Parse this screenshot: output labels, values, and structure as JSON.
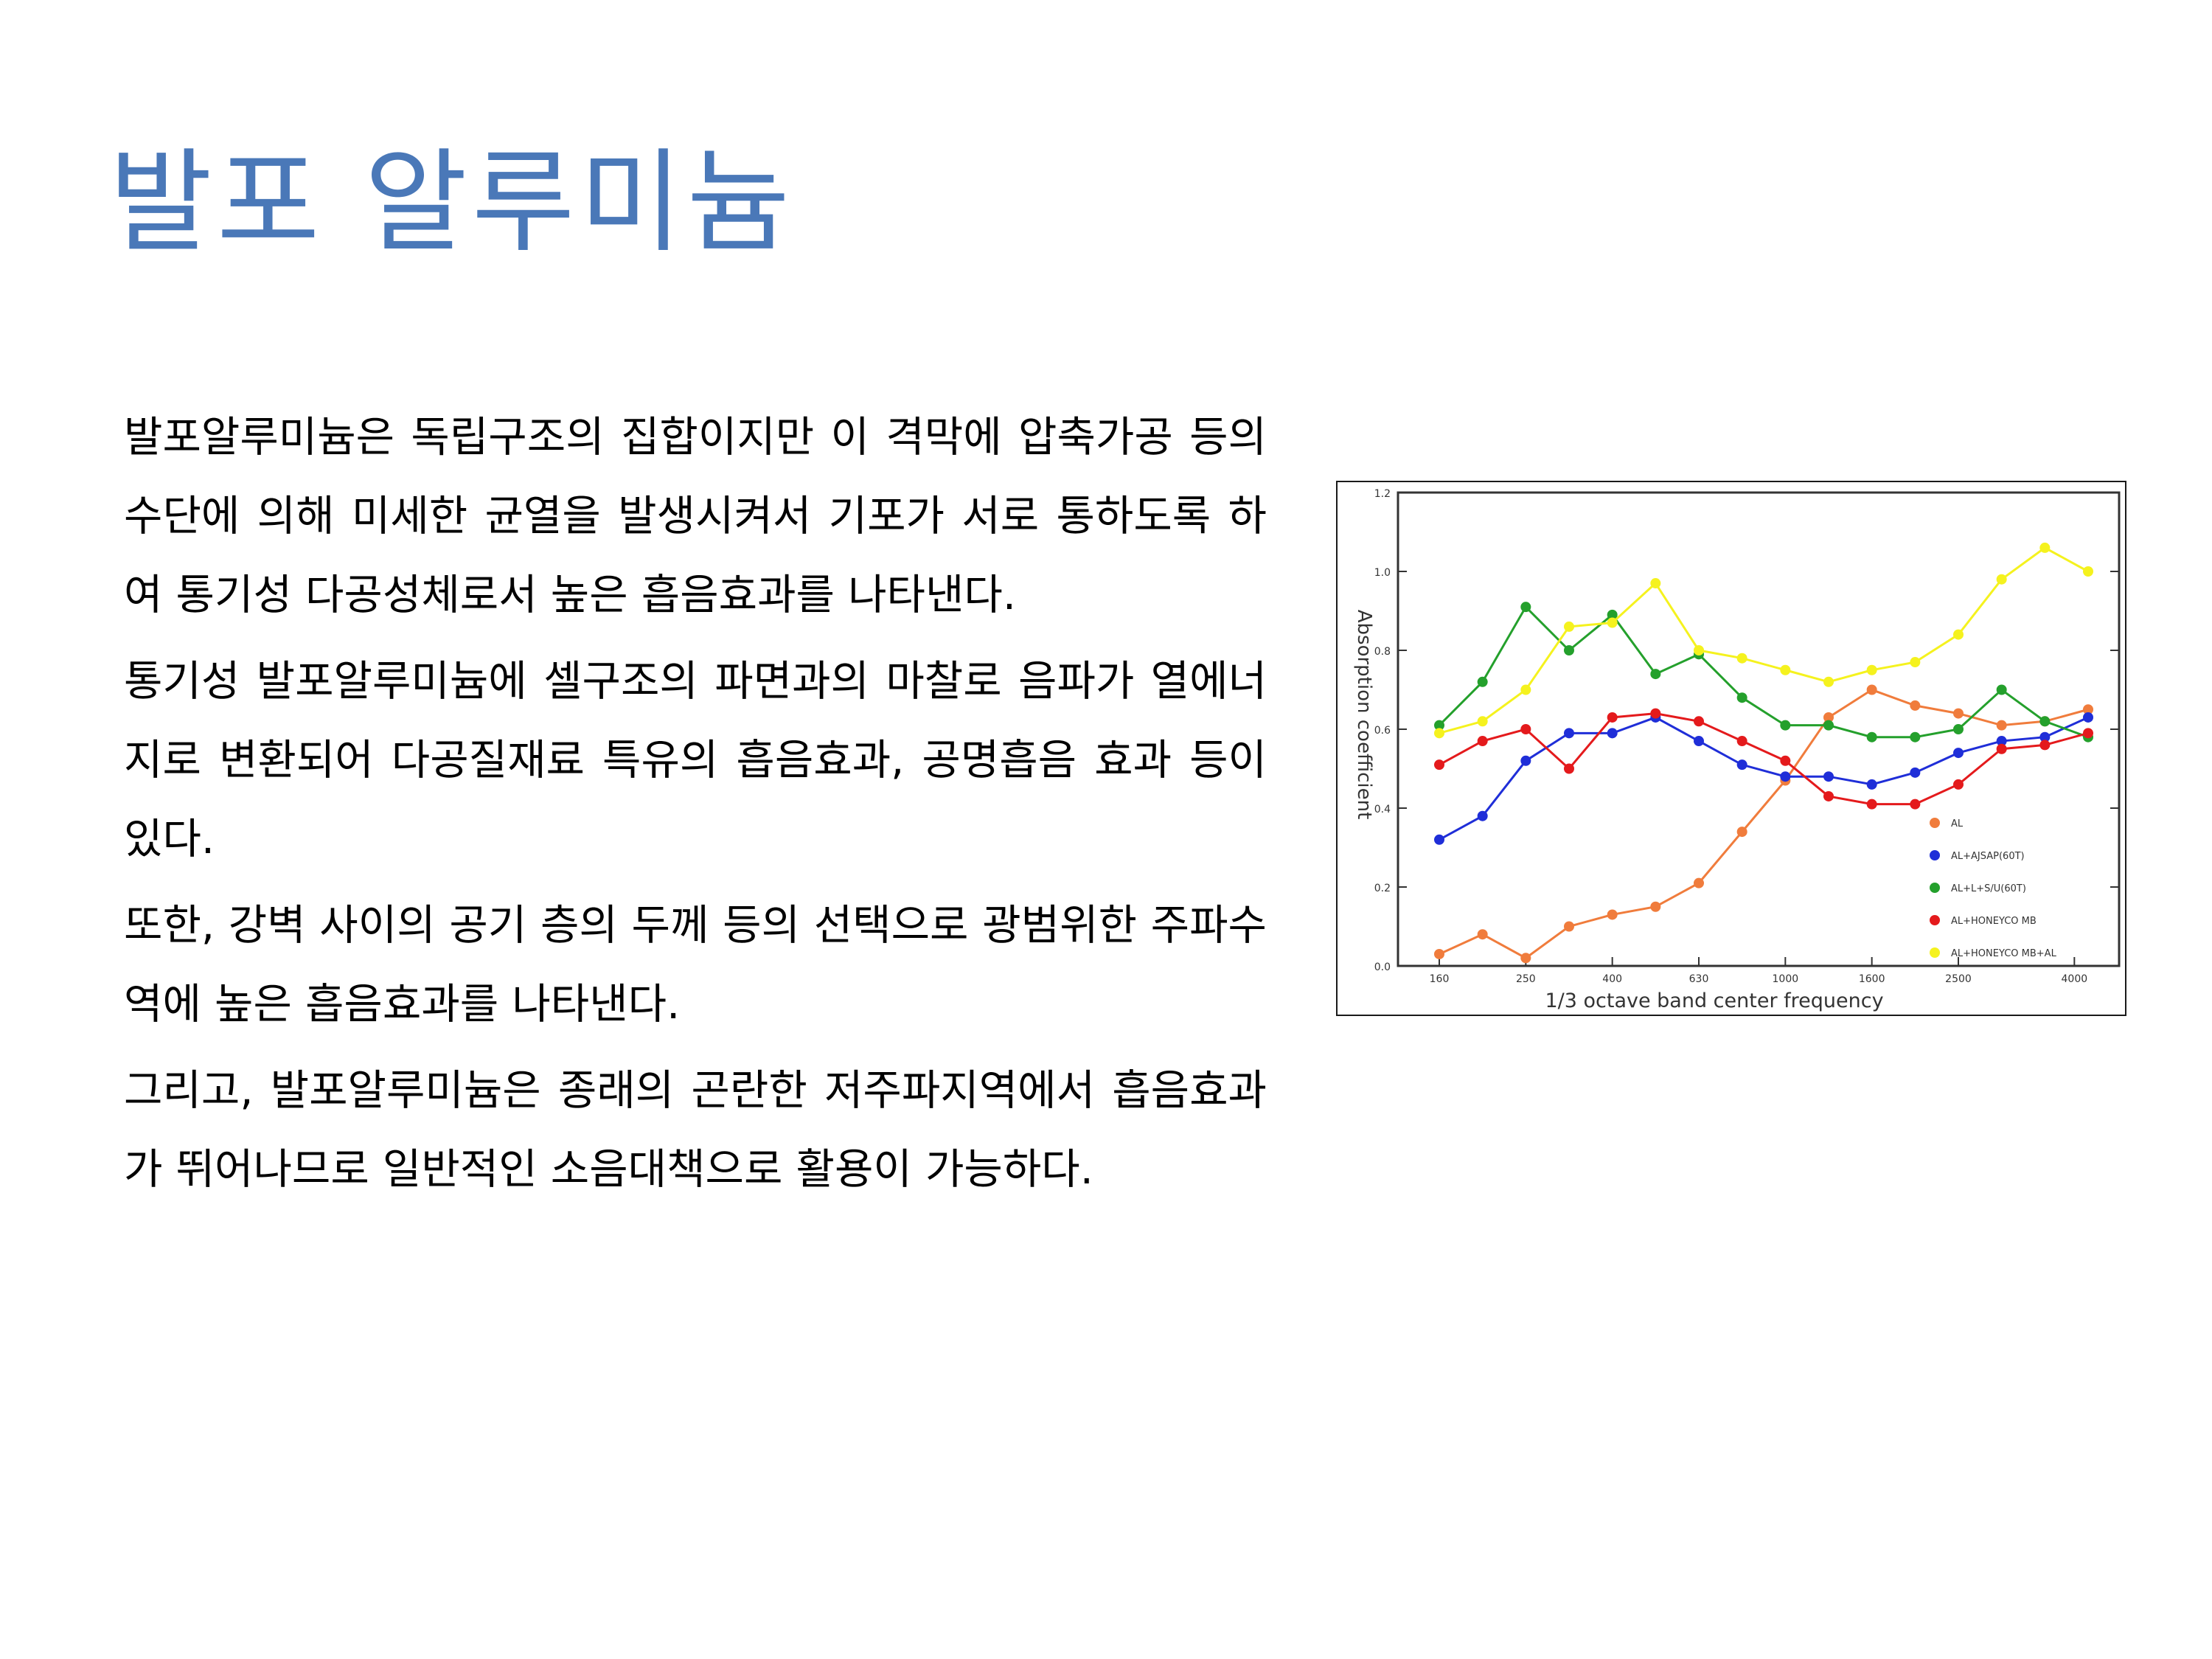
{
  "title": "발포 알루미늄",
  "paragraphs": [
    "발포알루미늄은 독립구조의 집합이지만 이 격막에 압축가공 등의 수단에 의해 미세한 균열을 발생시켜서 기포가 서로 통하도록 하여 통기성 다공성체로서 높은 흡음효과를 나타낸다.",
    "통기성 발포알루미늄에 셀구조의 파면과의 마찰로 음파가 열에너지로 변환되어 다공질재료 특유의 흡음효과, 공명흡음 효과 등이 있다.",
    "또한, 강벽 사이의 공기 층의 두께 등의 선택으로 광범위한 주파수역에 높은 흡음효과를 나타낸다.",
    "그리고, 발포알루미늄은 종래의 곤란한 저주파지역에서 흡음효과가 뛰어나므로 일반적인 소음대책으로 활용이 가능하다."
  ],
  "chart_data": {
    "type": "line",
    "xlabel": "1/3 octave band center frequency",
    "ylabel": "Absorption coefficient",
    "x_tick_labels": [
      "160",
      "250",
      "400",
      "630",
      "1000",
      "1600",
      "2500",
      "4000"
    ],
    "y_tick_labels": [
      "0.0",
      "0.2",
      "0.4",
      "0.6",
      "0.8",
      "1.0",
      "1.2"
    ],
    "ylim": [
      0,
      1.2
    ],
    "legend_position": "bottom-right",
    "series": [
      {
        "name": "AL",
        "color": "#f07c3c",
        "values": [
          0.03,
          0.08,
          0.02,
          0.1,
          0.13,
          0.15,
          0.21,
          0.34,
          0.47,
          0.63,
          0.7,
          0.66,
          0.64,
          0.61,
          0.62,
          0.65
        ]
      },
      {
        "name": "AL+AJSAP(60T)",
        "color": "#1f2ed8",
        "values": [
          0.32,
          0.38,
          0.52,
          0.59,
          0.59,
          0.63,
          0.57,
          0.51,
          0.48,
          0.48,
          0.46,
          0.49,
          0.54,
          0.57,
          0.58,
          0.63
        ]
      },
      {
        "name": "AL+L+S/U(60T)",
        "color": "#24a02c",
        "values": [
          0.61,
          0.72,
          0.91,
          0.8,
          0.89,
          0.74,
          0.79,
          0.68,
          0.61,
          0.61,
          0.58,
          0.58,
          0.6,
          0.7,
          0.62,
          0.58
        ]
      },
      {
        "name": "AL+HONEYCO MB",
        "color": "#e41a1c",
        "values": [
          0.51,
          0.57,
          0.6,
          0.5,
          0.63,
          0.64,
          0.62,
          0.57,
          0.52,
          0.43,
          0.41,
          0.41,
          0.46,
          0.55,
          0.56,
          0.59
        ]
      },
      {
        "name": "AL+HONEYCO MB+AL",
        "color": "#f5f21e",
        "values": [
          0.59,
          0.62,
          0.7,
          0.86,
          0.87,
          0.97,
          0.8,
          0.78,
          0.75,
          0.72,
          0.75,
          0.77,
          0.84,
          0.98,
          1.06,
          1.0
        ]
      }
    ]
  }
}
